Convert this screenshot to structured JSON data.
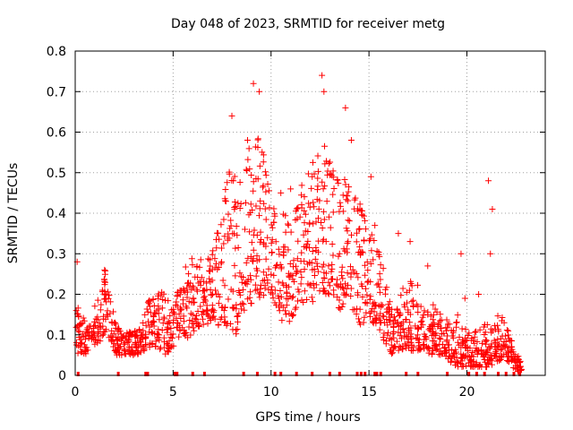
{
  "chart_data": {
    "type": "scatter",
    "title": "Day 048 of 2023, SRMTID for receiver metg",
    "xlabel": "GPS time / hours",
    "ylabel": "SRMTID / TECUs",
    "xlim": [
      0,
      24
    ],
    "ylim": [
      0,
      0.8
    ],
    "x_ticks": [
      {
        "value": 0,
        "label": "0"
      },
      {
        "value": 5,
        "label": "5"
      },
      {
        "value": 10,
        "label": "10"
      },
      {
        "value": 15,
        "label": "15"
      },
      {
        "value": 20,
        "label": "20"
      }
    ],
    "y_ticks": [
      {
        "value": 0,
        "label": "0"
      },
      {
        "value": 0.1,
        "label": "0.1"
      },
      {
        "value": 0.2,
        "label": "0.2"
      },
      {
        "value": 0.3,
        "label": "0.3"
      },
      {
        "value": 0.4,
        "label": "0.4"
      },
      {
        "value": 0.5,
        "label": "0.5"
      },
      {
        "value": 0.6,
        "label": "0.6"
      },
      {
        "value": 0.7,
        "label": "0.7"
      },
      {
        "value": 0.8,
        "label": "0.8"
      }
    ],
    "grid": true,
    "marker": "+",
    "series_color": "#ff0000",
    "envelope": [
      [
        0.0,
        0.04,
        0.33
      ],
      [
        0.2,
        0.06,
        0.18
      ],
      [
        0.5,
        0.05,
        0.13
      ],
      [
        0.8,
        0.07,
        0.17
      ],
      [
        1.2,
        0.08,
        0.2
      ],
      [
        1.5,
        0.1,
        0.27
      ],
      [
        1.8,
        0.09,
        0.2
      ],
      [
        2.1,
        0.05,
        0.12
      ],
      [
        2.6,
        0.05,
        0.11
      ],
      [
        3.1,
        0.05,
        0.11
      ],
      [
        3.5,
        0.06,
        0.14
      ],
      [
        3.8,
        0.07,
        0.2
      ],
      [
        4.2,
        0.07,
        0.2
      ],
      [
        4.6,
        0.05,
        0.21
      ],
      [
        5.0,
        0.07,
        0.16
      ],
      [
        5.4,
        0.1,
        0.25
      ],
      [
        5.8,
        0.09,
        0.3
      ],
      [
        6.2,
        0.12,
        0.27
      ],
      [
        6.6,
        0.12,
        0.3
      ],
      [
        7.0,
        0.13,
        0.31
      ],
      [
        7.4,
        0.12,
        0.38
      ],
      [
        7.8,
        0.12,
        0.55
      ],
      [
        8.2,
        0.1,
        0.52
      ],
      [
        8.6,
        0.16,
        0.45
      ],
      [
        9.0,
        0.17,
        0.62
      ],
      [
        9.3,
        0.2,
        0.62
      ],
      [
        9.6,
        0.18,
        0.55
      ],
      [
        10.0,
        0.2,
        0.44
      ],
      [
        10.4,
        0.15,
        0.4
      ],
      [
        10.8,
        0.11,
        0.4
      ],
      [
        11.2,
        0.15,
        0.4
      ],
      [
        11.6,
        0.18,
        0.48
      ],
      [
        12.0,
        0.18,
        0.52
      ],
      [
        12.4,
        0.18,
        0.55
      ],
      [
        12.7,
        0.2,
        0.6
      ],
      [
        13.1,
        0.2,
        0.52
      ],
      [
        13.5,
        0.16,
        0.5
      ],
      [
        13.8,
        0.18,
        0.5
      ],
      [
        14.2,
        0.16,
        0.45
      ],
      [
        14.6,
        0.12,
        0.42
      ],
      [
        15.0,
        0.14,
        0.36
      ],
      [
        15.4,
        0.12,
        0.34
      ],
      [
        15.8,
        0.08,
        0.25
      ],
      [
        16.2,
        0.05,
        0.16
      ],
      [
        16.6,
        0.06,
        0.2
      ],
      [
        17.0,
        0.06,
        0.25
      ],
      [
        17.4,
        0.06,
        0.24
      ],
      [
        17.8,
        0.06,
        0.17
      ],
      [
        18.3,
        0.05,
        0.18
      ],
      [
        18.8,
        0.05,
        0.14
      ],
      [
        19.2,
        0.03,
        0.14
      ],
      [
        19.6,
        0.02,
        0.16
      ],
      [
        20.0,
        0.02,
        0.11
      ],
      [
        20.5,
        0.02,
        0.11
      ],
      [
        21.0,
        0.02,
        0.13
      ],
      [
        21.5,
        0.03,
        0.15
      ],
      [
        21.9,
        0.04,
        0.15
      ],
      [
        22.2,
        0.03,
        0.1
      ],
      [
        22.5,
        0.01,
        0.05
      ],
      [
        22.8,
        0.01,
        0.05
      ]
    ],
    "outliers": [
      [
        9.1,
        0.72
      ],
      [
        9.4,
        0.7
      ],
      [
        8.0,
        0.64
      ],
      [
        12.6,
        0.74
      ],
      [
        12.7,
        0.7
      ],
      [
        13.8,
        0.66
      ],
      [
        14.1,
        0.58
      ],
      [
        15.1,
        0.49
      ],
      [
        15.3,
        0.37
      ],
      [
        16.5,
        0.35
      ],
      [
        17.1,
        0.33
      ],
      [
        18.0,
        0.27
      ],
      [
        19.7,
        0.3
      ],
      [
        21.1,
        0.48
      ],
      [
        21.3,
        0.41
      ],
      [
        21.2,
        0.3
      ],
      [
        19.9,
        0.19
      ],
      [
        20.6,
        0.2
      ],
      [
        0.1,
        0.28
      ],
      [
        1.5,
        0.26
      ],
      [
        12.1,
        0.49
      ],
      [
        11.0,
        0.46
      ],
      [
        10.5,
        0.45
      ],
      [
        8.8,
        0.58
      ]
    ],
    "zero_markers": [
      0.15,
      2.2,
      3.6,
      3.7,
      5.1,
      5.2,
      6.0,
      6.6,
      8.6,
      9.3,
      10.2,
      10.5,
      11.3,
      12.1,
      13.0,
      13.5,
      14.4,
      14.6,
      14.8,
      15.3,
      15.4,
      15.6,
      16.9,
      17.5,
      19.0,
      20.1,
      20.5,
      20.9,
      21.6,
      22.0,
      22.4,
      22.7
    ]
  }
}
